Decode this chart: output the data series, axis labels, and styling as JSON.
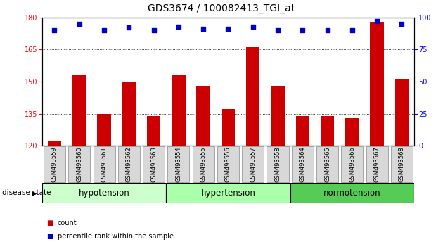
{
  "title": "GDS3674 / 100082413_TGI_at",
  "categories": [
    "GSM493559",
    "GSM493560",
    "GSM493561",
    "GSM493562",
    "GSM493563",
    "GSM493554",
    "GSM493555",
    "GSM493556",
    "GSM493557",
    "GSM493558",
    "GSM493564",
    "GSM493565",
    "GSM493566",
    "GSM493567",
    "GSM493568"
  ],
  "counts": [
    122,
    153,
    135,
    150,
    134,
    153,
    148,
    137,
    166,
    148,
    134,
    134,
    133,
    178,
    151
  ],
  "percentiles": [
    90,
    95,
    90,
    92,
    90,
    93,
    91,
    91,
    93,
    90,
    90,
    90,
    90,
    97,
    95
  ],
  "bar_color": "#cc0000",
  "dot_color": "#0000cc",
  "ylim_left": [
    120,
    180
  ],
  "ylim_right": [
    0,
    100
  ],
  "yticks_left": [
    120,
    135,
    150,
    165,
    180
  ],
  "yticks_right": [
    0,
    25,
    50,
    75,
    100
  ],
  "grid_lines": [
    135,
    150,
    165
  ],
  "groups": [
    {
      "label": "hypotension",
      "start": 0,
      "end": 5,
      "color": "#ccffcc"
    },
    {
      "label": "hypertension",
      "start": 5,
      "end": 10,
      "color": "#aaffaa"
    },
    {
      "label": "normotension",
      "start": 10,
      "end": 15,
      "color": "#55cc55"
    }
  ],
  "group_label": "disease state",
  "legend_count_label": "count",
  "legend_pct_label": "percentile rank within the sample",
  "title_fontsize": 10,
  "tick_fontsize": 7,
  "bar_width": 0.55
}
